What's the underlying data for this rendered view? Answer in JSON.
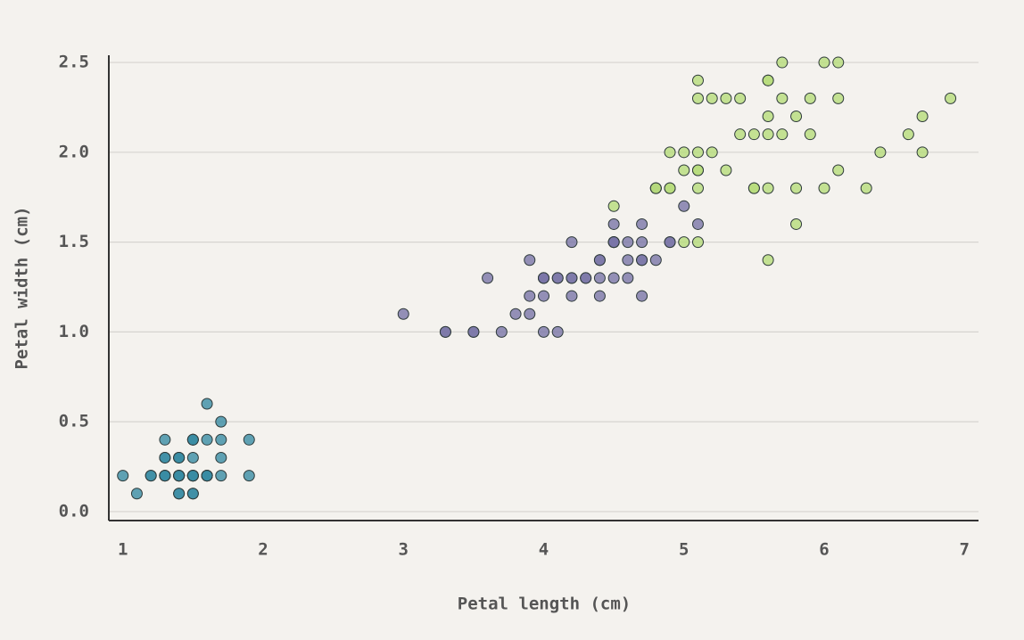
{
  "chart_data": {
    "type": "scatter",
    "x_label": "Petal length (cm)",
    "y_label": "Petal width (cm)",
    "xlim": [
      0.9,
      7.1
    ],
    "xticks": [
      1,
      2,
      3,
      4,
      5,
      6,
      7
    ],
    "ylim": [
      -0.05,
      2.54
    ],
    "yticks": [
      {
        "value": 0,
        "label": "0.0"
      },
      0.5,
      {
        "value": 1,
        "label": "1.0"
      },
      1.5,
      {
        "value": 2,
        "label": "2.0"
      },
      2.5
    ],
    "grid": true,
    "series": [
      {
        "color": "#3a8ca4",
        "x": [
          1.4,
          1.4,
          1.3,
          1.5,
          1.4,
          1.7,
          1.4,
          1.5,
          1.4,
          1.5,
          1.5,
          1.6,
          1.4,
          1.1,
          1.2,
          1.5,
          1.3,
          1.4,
          1.7,
          1.5,
          1.7,
          1.5,
          1.0,
          1.7,
          1.9,
          1.6,
          1.6,
          1.5,
          1.4,
          1.6,
          1.6,
          1.5,
          1.5,
          1.4,
          1.5,
          1.2,
          1.3,
          1.4,
          1.3,
          1.5,
          1.3,
          1.3,
          1.3,
          1.6,
          1.9,
          1.4,
          1.6,
          1.4,
          1.5,
          1.4
        ],
        "values": [
          0.2,
          0.2,
          0.2,
          0.2,
          0.2,
          0.4,
          0.3,
          0.2,
          0.2,
          0.1,
          0.2,
          0.2,
          0.1,
          0.1,
          0.2,
          0.4,
          0.4,
          0.3,
          0.3,
          0.3,
          0.2,
          0.4,
          0.2,
          0.5,
          0.2,
          0.2,
          0.4,
          0.2,
          0.2,
          0.2,
          0.2,
          0.4,
          0.1,
          0.2,
          0.2,
          0.2,
          0.2,
          0.1,
          0.2,
          0.2,
          0.3,
          0.3,
          0.2,
          0.6,
          0.4,
          0.3,
          0.2,
          0.2,
          0.2,
          0.2
        ]
      },
      {
        "color": "#7b76a8",
        "x": [
          4.7,
          4.5,
          4.9,
          4.0,
          4.6,
          4.5,
          4.7,
          3.3,
          4.6,
          3.9,
          3.5,
          4.2,
          4.0,
          4.7,
          3.6,
          4.4,
          4.5,
          4.1,
          4.5,
          3.9,
          4.8,
          4.0,
          4.9,
          4.7,
          4.3,
          4.4,
          4.8,
          5.0,
          4.5,
          3.5,
          3.8,
          3.7,
          3.9,
          5.1,
          4.5,
          4.5,
          4.7,
          4.4,
          4.1,
          4.0,
          4.4,
          4.6,
          4.0,
          3.3,
          4.2,
          4.2,
          4.2,
          4.3,
          3.0,
          4.1
        ],
        "values": [
          1.4,
          1.5,
          1.5,
          1.3,
          1.5,
          1.3,
          1.6,
          1.0,
          1.3,
          1.4,
          1.0,
          1.5,
          1.0,
          1.4,
          1.3,
          1.4,
          1.5,
          1.0,
          1.5,
          1.1,
          1.8,
          1.3,
          1.5,
          1.2,
          1.3,
          1.4,
          1.4,
          1.7,
          1.5,
          1.0,
          1.1,
          1.0,
          1.2,
          1.6,
          1.5,
          1.6,
          1.5,
          1.3,
          1.3,
          1.3,
          1.2,
          1.4,
          1.2,
          1.0,
          1.3,
          1.2,
          1.3,
          1.3,
          1.1,
          1.3
        ]
      },
      {
        "color": "#b6dc7a",
        "x": [
          6.0,
          5.1,
          5.9,
          5.6,
          5.8,
          6.6,
          4.5,
          6.3,
          5.8,
          6.1,
          5.1,
          5.3,
          5.5,
          5.0,
          5.1,
          5.3,
          5.5,
          6.7,
          6.9,
          5.0,
          5.7,
          4.9,
          6.7,
          4.9,
          5.7,
          6.0,
          4.8,
          4.9,
          5.6,
          5.8,
          6.1,
          6.4,
          5.6,
          5.1,
          5.6,
          6.1,
          5.6,
          5.5,
          4.8,
          5.4,
          5.6,
          5.1,
          5.1,
          5.9,
          5.7,
          5.2,
          5.0,
          5.2,
          5.4,
          5.1
        ],
        "values": [
          2.5,
          1.9,
          2.1,
          1.8,
          2.2,
          2.1,
          1.7,
          1.8,
          1.8,
          2.5,
          2.0,
          1.9,
          2.1,
          2.0,
          2.4,
          2.3,
          1.8,
          2.2,
          2.3,
          1.5,
          2.3,
          2.0,
          2.0,
          1.8,
          2.1,
          1.8,
          1.8,
          1.8,
          2.1,
          1.6,
          1.9,
          2.0,
          2.2,
          1.5,
          1.4,
          2.3,
          2.4,
          1.8,
          1.8,
          2.1,
          2.4,
          2.3,
          1.9,
          2.3,
          2.5,
          2.3,
          1.9,
          2.0,
          2.3,
          1.8
        ]
      }
    ]
  }
}
